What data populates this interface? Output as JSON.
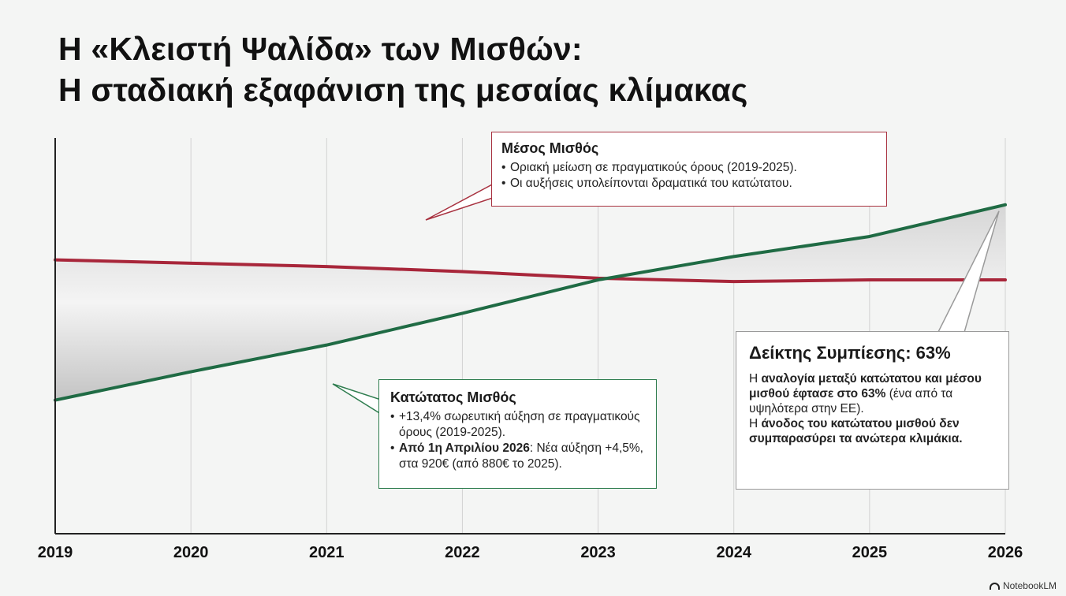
{
  "title_line1": "Η «Κλειστή Ψαλίδα» των Μισθών:",
  "title_line2": "Η σταδιακή εξαφάνιση της μεσαίας κλίμακας",
  "chart_data": {
    "type": "line",
    "x": [
      "2019",
      "2020",
      "2021",
      "2022",
      "2023",
      "2024",
      "2025",
      "2026"
    ],
    "series": [
      {
        "name": "Μέσος Μισθός",
        "values": [
          72,
          70,
          68,
          65,
          61,
          59,
          60,
          60
        ],
        "color": "#a8263a"
      },
      {
        "name": "Κατώτατος Μισθός",
        "values": [
          -12,
          5,
          21,
          40,
          60,
          74,
          86,
          105
        ],
        "color": "#1f6b44"
      }
    ],
    "ylim": [
      -92,
      145
    ],
    "y_ticks_visible": false,
    "grid_vertical": true,
    "fill_between": true,
    "fill_color": "#c9c9c9"
  },
  "avg_callout": {
    "title": "Μέσος Μισθός",
    "item1": "Οριακή μείωση σε πραγματικούς όρους (2019-2025).",
    "item2": "Οι αυξήσεις υπολείπονται δραματικά του κατώτατου."
  },
  "min_callout": {
    "title": "Κατώτατος Μισθός",
    "item1": "+13,4% σωρευτική αύξηση σε πραγματικούς όρους (2019-2025).",
    "item2_bold": "Από 1η Απριλίου 2026",
    "item2_rest": ": Νέα αύξηση +4,5%, στα 920€ (από 880€ το 2025)."
  },
  "comp_callout": {
    "title": "Δείκτης Συμπίεσης: 63%",
    "p1_pre": "Η ",
    "p1_bold": "αναλογία μεταξύ κατώτατου και μέσου μισθού έφτασε στο 63%",
    "p1_rest": " (ένα από τα υψηλότερα στην ΕΕ).",
    "p2_pre": "Η ",
    "p2_bold": "άνοδος του κατώτατου μισθού δεν συμπαρασύρει τα ανώτερα κλιμάκια."
  },
  "watermark": "NotebookLM"
}
